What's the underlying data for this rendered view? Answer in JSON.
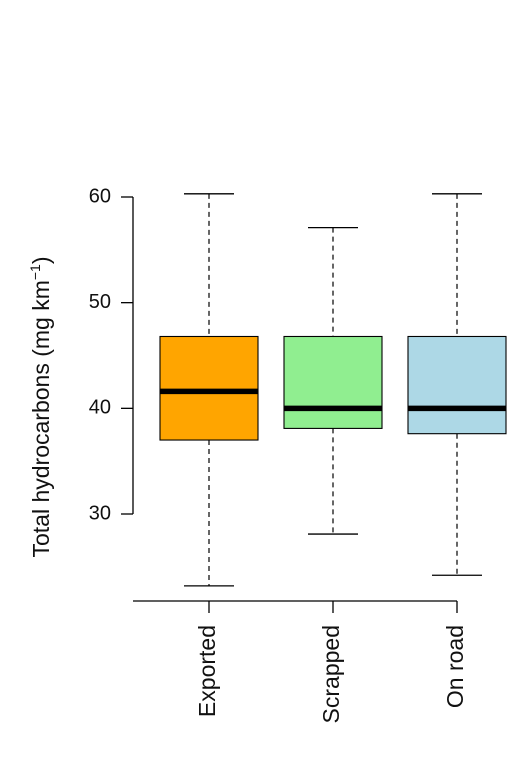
{
  "chart_data": {
    "type": "box",
    "title": "",
    "ylabel": {
      "main": "Total hydrocarbons (mg km",
      "superscript": "−1",
      "close": ")"
    },
    "ylim": [
      21.5,
      61
    ],
    "yticks": [
      30,
      40,
      50,
      60
    ],
    "categories": [
      "Exported",
      "Scrapped",
      "On road"
    ],
    "colors": [
      "#FFA500",
      "#90EE90",
      "#ADD8E6"
    ],
    "boxes": [
      {
        "name": "Exported",
        "whisker_low": 23.2,
        "q1": 37.0,
        "median": 41.6,
        "q3": 46.8,
        "whisker_high": 60.3
      },
      {
        "name": "Scrapped",
        "whisker_low": 28.1,
        "q1": 38.1,
        "median": 40.0,
        "q3": 46.8,
        "whisker_high": 57.1
      },
      {
        "name": "On road",
        "whisker_low": 24.2,
        "q1": 37.6,
        "median": 40.0,
        "q3": 46.8,
        "whisker_high": 60.3
      }
    ],
    "grid": false,
    "legend": "none"
  }
}
